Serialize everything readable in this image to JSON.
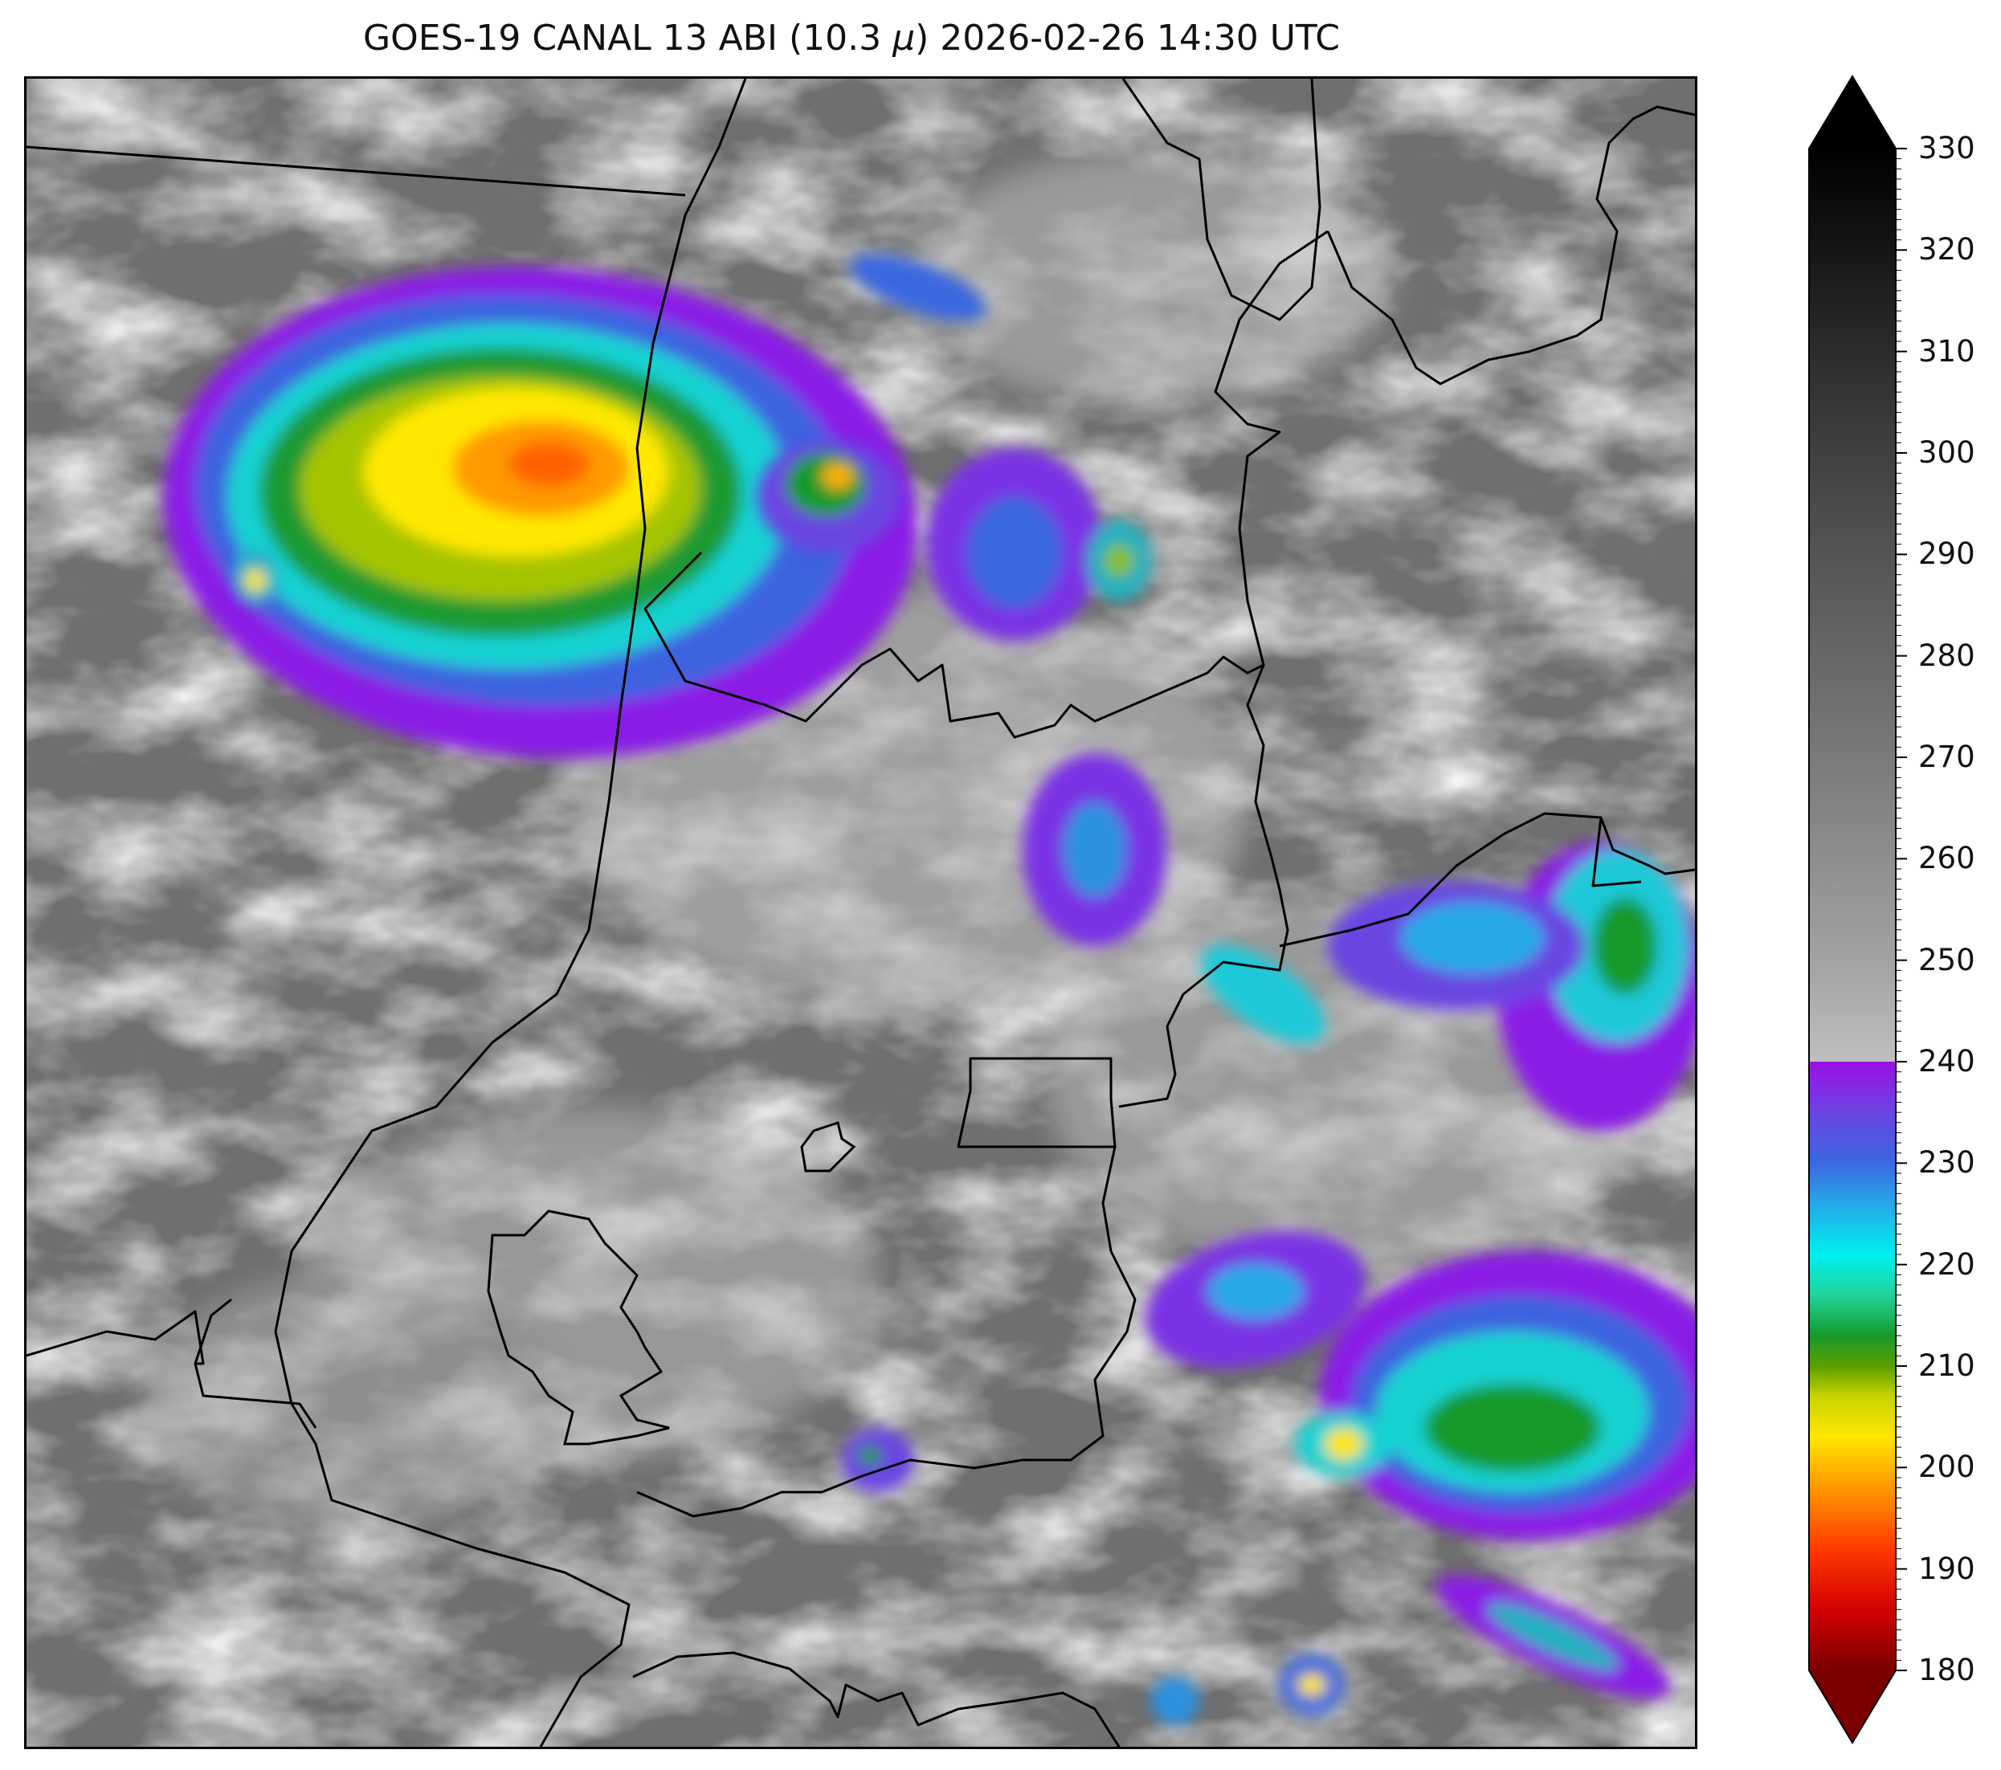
{
  "title": {
    "satellite": "GOES-19 CANAL 13 ABI",
    "band_open": "(10.3 ",
    "band_symbol": "μ",
    "band_close": ")",
    "datetime": "2026-02-26 14:30 UTC"
  },
  "colorbar": {
    "unit_range": [
      180,
      330
    ],
    "extend": "both",
    "ticks": [
      "180",
      "190",
      "200",
      "210",
      "220",
      "230",
      "240",
      "250",
      "260",
      "270",
      "280",
      "290",
      "300",
      "310",
      "320",
      "330"
    ],
    "color_stops": [
      {
        "value": 180,
        "color": "#7a0000"
      },
      {
        "value": 186,
        "color": "#d40000"
      },
      {
        "value": 192,
        "color": "#ff3a00"
      },
      {
        "value": 198,
        "color": "#ff9800"
      },
      {
        "value": 203,
        "color": "#ffe600"
      },
      {
        "value": 207,
        "color": "#c8d400"
      },
      {
        "value": 210,
        "color": "#5a9e00"
      },
      {
        "value": 213,
        "color": "#169a2c"
      },
      {
        "value": 217,
        "color": "#20d49a"
      },
      {
        "value": 221,
        "color": "#00f0f0"
      },
      {
        "value": 226,
        "color": "#25a8e8"
      },
      {
        "value": 230,
        "color": "#3a68e0"
      },
      {
        "value": 235,
        "color": "#6a44e2"
      },
      {
        "value": 240,
        "color": "#9a10e6"
      },
      {
        "value": 240,
        "color": "#bfbfbf"
      },
      {
        "value": 250,
        "color": "#a2a2a2"
      },
      {
        "value": 270,
        "color": "#7a7a7a"
      },
      {
        "value": 290,
        "color": "#545454"
      },
      {
        "value": 310,
        "color": "#2c2c2c"
      },
      {
        "value": 330,
        "color": "#000000"
      }
    ]
  }
}
